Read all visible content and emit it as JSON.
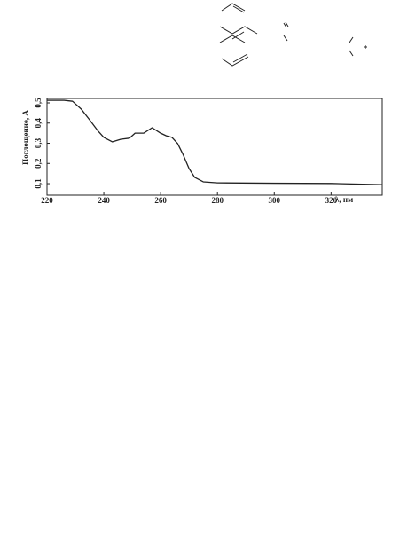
{
  "chart_data": {
    "type": "line",
    "x_label": "λ, нм",
    "y_label": "Поглощение, A",
    "x": [
      220,
      226,
      229,
      232,
      235,
      238,
      240,
      243,
      246,
      249,
      251,
      254,
      257,
      260,
      262,
      264,
      266,
      268,
      270,
      272,
      275,
      280,
      300,
      320,
      338
    ],
    "series": [
      {
        "color": "#222222",
        "values": [
          0.513,
          0.513,
          0.508,
          0.47,
          0.416,
          0.36,
          0.329,
          0.307,
          0.32,
          0.325,
          0.35,
          0.35,
          0.377,
          0.35,
          0.337,
          0.329,
          0.298,
          0.241,
          0.175,
          0.131,
          0.109,
          0.104,
          0.102,
          0.101,
          0.095
        ]
      }
    ],
    "xlim": [
      220,
      338
    ],
    "ylim": [
      0.043,
      0.522
    ],
    "xticks": [
      220,
      240,
      260,
      280,
      300,
      320
    ],
    "yticks": [
      {
        "value": 0.1,
        "label": "0,1"
      },
      {
        "value": 0.2,
        "label": "0,2"
      },
      {
        "value": 0.3,
        "label": "0,3"
      },
      {
        "value": 0.4,
        "label": "0,4"
      },
      {
        "value": 0.5,
        "label": "0,5"
      }
    ],
    "grid": false
  }
}
